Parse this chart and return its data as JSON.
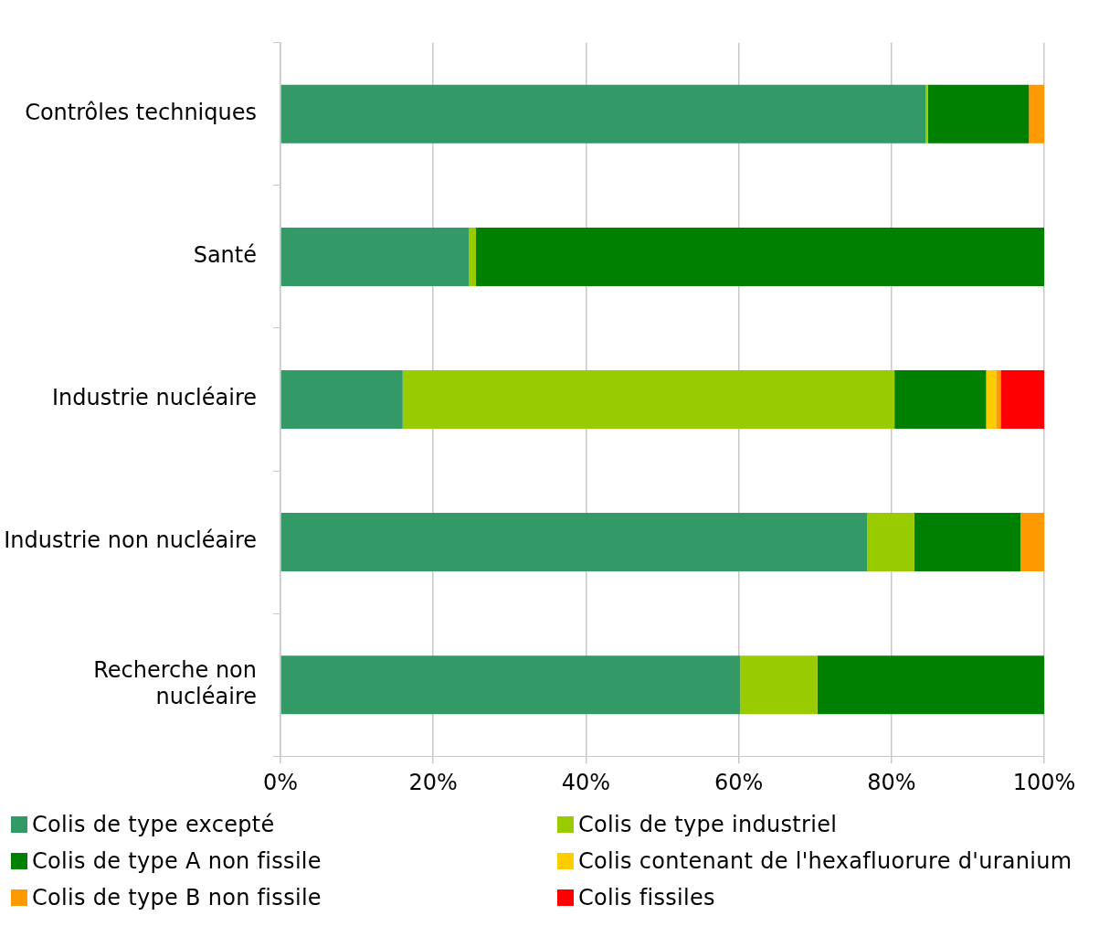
{
  "chart_data": {
    "type": "bar",
    "orientation": "horizontal",
    "stacked": true,
    "categories": [
      "Contrôles techniques",
      "Santé",
      "Industrie nucléaire",
      "Industrie non nucléaire",
      "Recherche non nucléaire"
    ],
    "series": [
      {
        "name": "Colis de type excepté",
        "color": "#339966",
        "values": [
          84.5,
          24.7,
          16.0,
          76.8,
          60.2
        ]
      },
      {
        "name": "Colis de type industriel",
        "color": "#99cc00",
        "values": [
          0.3,
          0.9,
          64.4,
          6.2,
          10.1
        ]
      },
      {
        "name": "Colis de type A non fissile",
        "color": "#008000",
        "values": [
          13.2,
          74.4,
          12.0,
          13.9,
          29.7
        ]
      },
      {
        "name": "Colis contenant de l'hexafluorure d'uranium",
        "color": "#ffcc00",
        "values": [
          0,
          0,
          1.3,
          0,
          0
        ]
      },
      {
        "name": "Colis de type B non fissile",
        "color": "#ff9900",
        "values": [
          2.0,
          0,
          0.6,
          3.1,
          0
        ]
      },
      {
        "name": "Colis fissiles",
        "color": "#ff0000",
        "values": [
          0,
          0,
          5.7,
          0,
          0
        ]
      }
    ],
    "xlim": [
      0,
      100
    ],
    "xticks": [
      {
        "value": 0,
        "label": "0%"
      },
      {
        "value": 20,
        "label": "20%"
      },
      {
        "value": 40,
        "label": "40%"
      },
      {
        "value": 60,
        "label": "60%"
      },
      {
        "value": 80,
        "label": "80%"
      },
      {
        "value": 100,
        "label": "100%"
      }
    ],
    "grid": "x",
    "legend": "bottom"
  }
}
